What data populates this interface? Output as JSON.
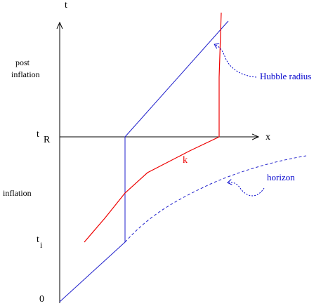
{
  "axes": {
    "t": "t",
    "x": "x",
    "zero": "0",
    "t_R": "t",
    "t_R_sub": "R",
    "t_i": "t",
    "t_i_sub": "i"
  },
  "regions": {
    "post_inflation_1": "post",
    "post_inflation_2": "inflation",
    "inflation": "inflation"
  },
  "curves": {
    "k": "k",
    "hubble_radius": "Hubble radius",
    "horizon": "horizon"
  }
}
